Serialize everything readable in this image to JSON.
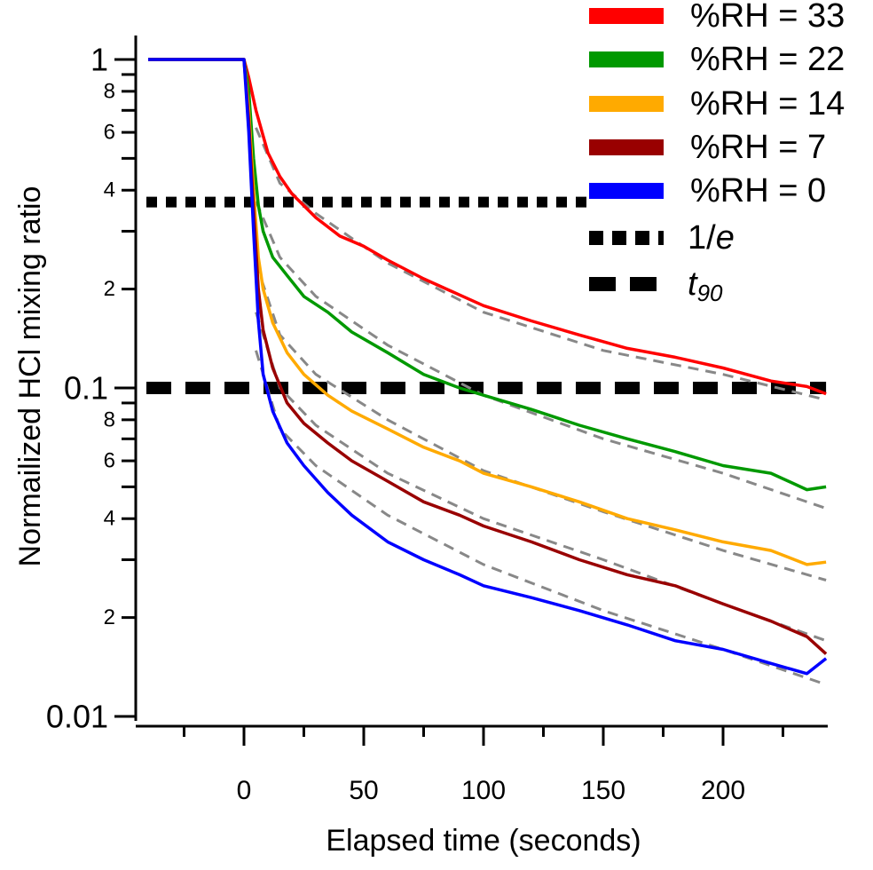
{
  "chart_data": {
    "type": "line",
    "title": "",
    "xlabel": "Elapsed time (seconds)",
    "ylabel": "Normailized HCl mixing ratio",
    "xlim": [
      -45,
      243
    ],
    "ylim": [
      0.01,
      1.0
    ],
    "yscale": "log",
    "x_ticks": [
      0,
      50,
      100,
      150,
      200
    ],
    "x_tick_labels": [
      "0",
      "50",
      "100",
      "150",
      "200"
    ],
    "y_major_ticks": [
      {
        "value": 1.0,
        "label": "1"
      },
      {
        "value": 0.1,
        "label": "0.1"
      },
      {
        "value": 0.01,
        "label": "0.01"
      }
    ],
    "y_minor_ticks": [
      {
        "value": 0.8,
        "label": "8"
      },
      {
        "value": 0.6,
        "label": "6"
      },
      {
        "value": 0.4,
        "label": "4"
      },
      {
        "value": 0.2,
        "label": "2"
      },
      {
        "value": 0.08,
        "label": "8"
      },
      {
        "value": 0.06,
        "label": "6"
      },
      {
        "value": 0.04,
        "label": "4"
      },
      {
        "value": 0.02,
        "label": "2"
      }
    ],
    "y_unlabeled_ticks": [
      0.9,
      0.7,
      0.5,
      0.3,
      0.09,
      0.07,
      0.05,
      0.03
    ],
    "grid": false,
    "legend_position": "top-right",
    "series": [
      {
        "name": "%RH = 33",
        "color": "#ff0000",
        "x": [
          -40,
          -20,
          0,
          2,
          5,
          10,
          15,
          20,
          30,
          40,
          50,
          60,
          75,
          90,
          100,
          120,
          140,
          160,
          180,
          200,
          220,
          235,
          243
        ],
        "y": [
          1.0,
          1.0,
          1.0,
          0.88,
          0.7,
          0.52,
          0.44,
          0.39,
          0.33,
          0.29,
          0.27,
          0.245,
          0.215,
          0.192,
          0.178,
          0.16,
          0.145,
          0.132,
          0.124,
          0.115,
          0.105,
          0.101,
          0.096
        ]
      },
      {
        "name": "%RH = 22",
        "color": "#009900",
        "x": [
          -40,
          -20,
          0,
          2,
          4,
          6,
          8,
          12,
          18,
          25,
          35,
          45,
          60,
          75,
          90,
          100,
          120,
          140,
          160,
          180,
          200,
          220,
          235,
          243
        ],
        "y": [
          1.0,
          1.0,
          1.0,
          0.8,
          0.5,
          0.36,
          0.3,
          0.25,
          0.22,
          0.19,
          0.17,
          0.148,
          0.128,
          0.11,
          0.1,
          0.095,
          0.086,
          0.077,
          0.07,
          0.064,
          0.058,
          0.055,
          0.049,
          0.05
        ]
      },
      {
        "name": "%RH = 14",
        "color": "#ffaa00",
        "x": [
          -40,
          -20,
          0,
          2,
          4,
          6,
          8,
          12,
          18,
          25,
          35,
          45,
          60,
          75,
          90,
          100,
          120,
          140,
          160,
          180,
          200,
          220,
          235,
          243
        ],
        "y": [
          1.0,
          1.0,
          1.0,
          0.7,
          0.4,
          0.25,
          0.2,
          0.158,
          0.128,
          0.11,
          0.095,
          0.085,
          0.075,
          0.066,
          0.06,
          0.055,
          0.05,
          0.045,
          0.04,
          0.037,
          0.034,
          0.032,
          0.029,
          0.0295
        ]
      },
      {
        "name": "%RH = 7",
        "color": "#990000",
        "x": [
          -40,
          -20,
          0,
          2,
          4,
          6,
          8,
          12,
          18,
          25,
          35,
          45,
          60,
          75,
          90,
          100,
          120,
          140,
          160,
          180,
          200,
          220,
          235,
          243
        ],
        "y": [
          1.0,
          1.0,
          1.0,
          0.65,
          0.35,
          0.2,
          0.15,
          0.115,
          0.09,
          0.078,
          0.068,
          0.06,
          0.052,
          0.045,
          0.041,
          0.038,
          0.034,
          0.03,
          0.027,
          0.025,
          0.022,
          0.0195,
          0.0175,
          0.0155
        ]
      },
      {
        "name": "%RH = 0",
        "color": "#0000ff",
        "x": [
          -40,
          -20,
          0,
          2,
          4,
          6,
          8,
          12,
          18,
          25,
          35,
          45,
          60,
          75,
          90,
          100,
          120,
          140,
          160,
          180,
          200,
          220,
          235,
          243
        ],
        "y": [
          1.0,
          1.0,
          1.0,
          0.6,
          0.3,
          0.16,
          0.11,
          0.085,
          0.068,
          0.058,
          0.048,
          0.041,
          0.034,
          0.03,
          0.027,
          0.025,
          0.023,
          0.021,
          0.019,
          0.017,
          0.016,
          0.0145,
          0.0135,
          0.015
        ]
      }
    ],
    "fits": [
      {
        "name": "fit-33",
        "color": "#888888",
        "x": [
          5,
          15,
          30,
          60,
          100,
          150,
          200,
          243
        ],
        "y": [
          0.62,
          0.42,
          0.34,
          0.24,
          0.17,
          0.13,
          0.11,
          0.092
        ]
      },
      {
        "name": "fit-22",
        "color": "#888888",
        "x": [
          5,
          15,
          30,
          60,
          100,
          150,
          200,
          243
        ],
        "y": [
          0.37,
          0.25,
          0.19,
          0.135,
          0.095,
          0.07,
          0.055,
          0.043
        ]
      },
      {
        "name": "fit-14",
        "color": "#888888",
        "x": [
          5,
          15,
          30,
          60,
          100,
          150,
          200,
          243
        ],
        "y": [
          0.24,
          0.145,
          0.11,
          0.08,
          0.056,
          0.042,
          0.032,
          0.026
        ]
      },
      {
        "name": "fit-7",
        "color": "#888888",
        "x": [
          5,
          15,
          30,
          60,
          100,
          150,
          200,
          243
        ],
        "y": [
          0.17,
          0.1,
          0.077,
          0.055,
          0.04,
          0.03,
          0.022,
          0.017
        ]
      },
      {
        "name": "fit-0",
        "color": "#888888",
        "x": [
          5,
          15,
          30,
          60,
          100,
          150,
          200,
          243
        ],
        "y": [
          0.13,
          0.075,
          0.058,
          0.041,
          0.029,
          0.021,
          0.016,
          0.0125
        ]
      }
    ],
    "reference_lines": [
      {
        "name": "1/e",
        "label_main": "1/",
        "label_italic": "e",
        "label_sub": "",
        "value": 0.368,
        "style": "dotted",
        "x_range": [
          -45,
          143
        ]
      },
      {
        "name": "t90",
        "label_main": "",
        "label_italic": "t",
        "label_sub": "90",
        "value": 0.1,
        "style": "dashed",
        "x_range": [
          -45,
          243
        ]
      }
    ]
  }
}
